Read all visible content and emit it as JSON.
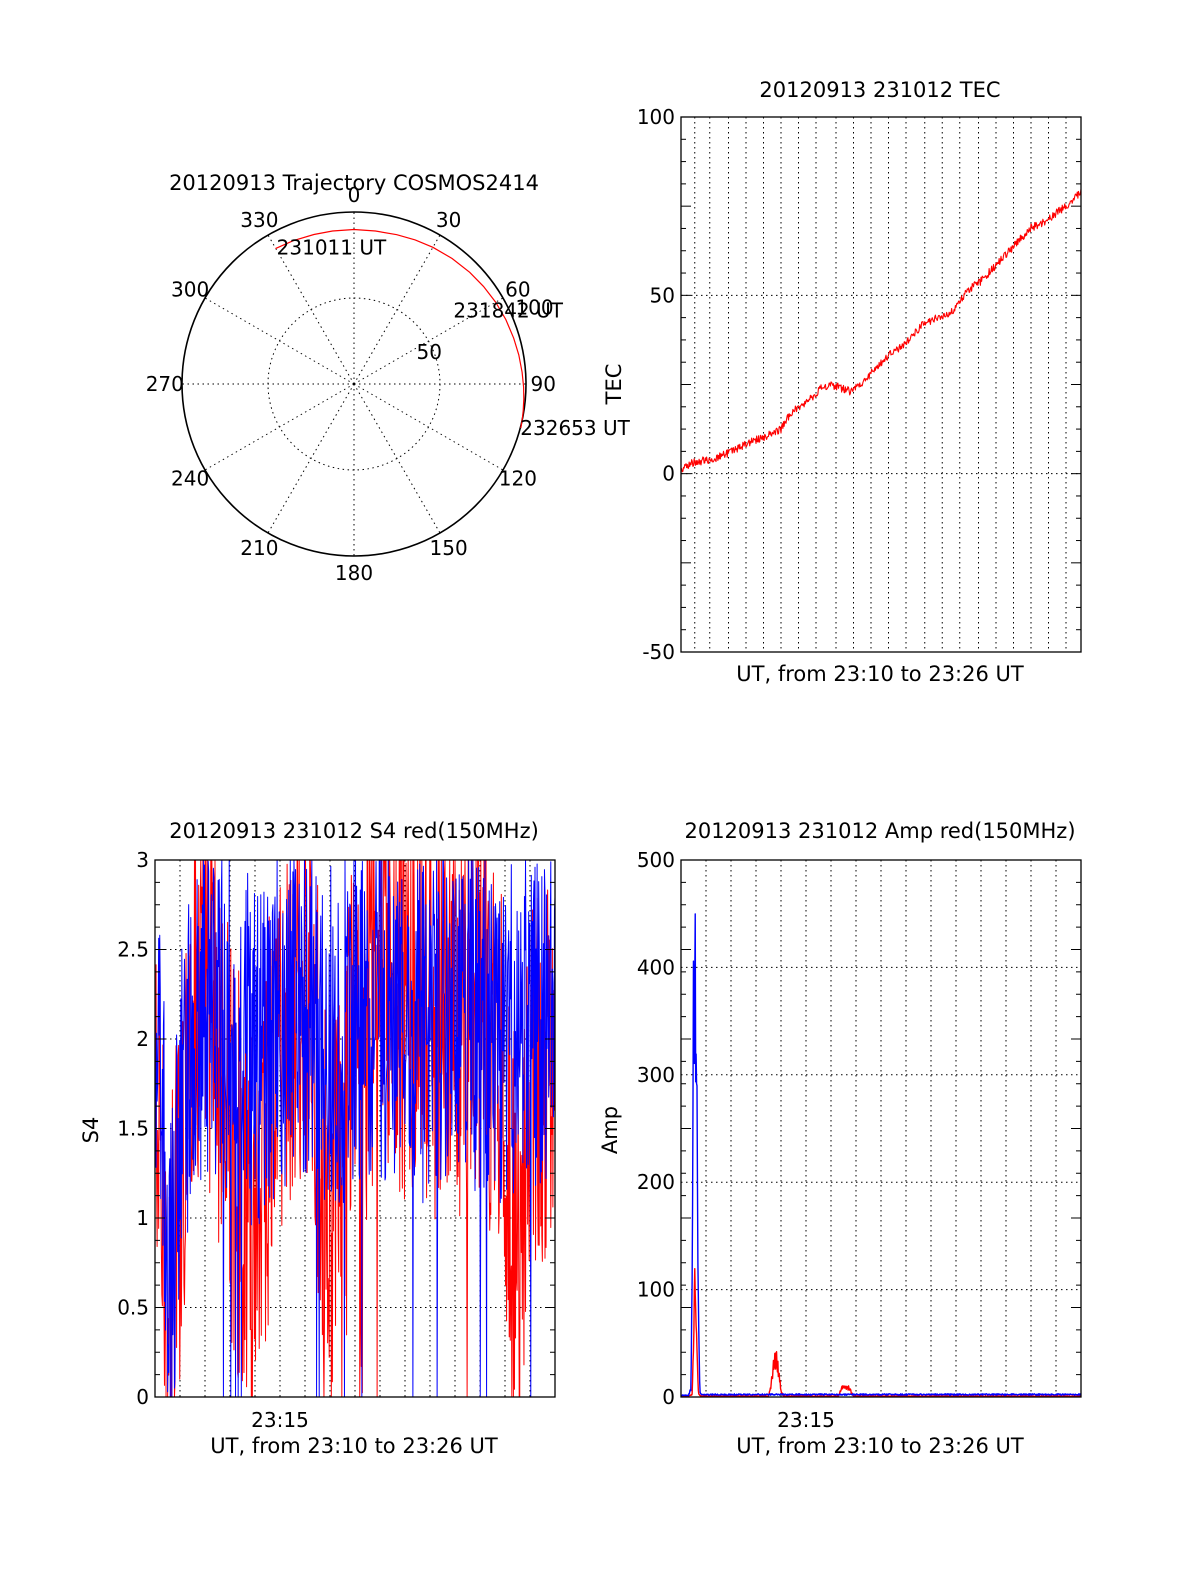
{
  "colors": {
    "red": "#ff0000",
    "blue": "#0000ff",
    "axis": "#000000"
  },
  "chart_data": [
    {
      "id": "trajectory",
      "type": "polar",
      "title": "20120913 Trajectory COSMOS2414",
      "azimuth_labels": [
        "0",
        "30",
        "60",
        "90",
        "120",
        "150",
        "180",
        "210",
        "240",
        "270",
        "300",
        "330"
      ],
      "azimuth_values": [
        0,
        30,
        60,
        90,
        120,
        150,
        180,
        210,
        240,
        270,
        300,
        330
      ],
      "radial_labels": [
        "50",
        "100"
      ],
      "radial_values": [
        50,
        100
      ],
      "radial_max": 100,
      "track_color": "#ff0000",
      "track": {
        "azimuth": [
          -30.1,
          -23,
          -15,
          -8,
          0,
          8,
          16,
          23,
          30,
          38,
          46,
          53,
          60,
          67,
          74,
          80,
          86,
          91,
          95,
          99,
          102,
          104.8
        ],
        "radius": [
          91,
          90.5,
          90,
          89.8,
          89.8,
          89.8,
          90.3,
          91,
          91.8,
          92.6,
          93.5,
          94.3,
          95.1,
          95.9,
          96.6,
          97.3,
          98,
          98.6,
          99.1,
          99.6,
          100,
          100.3
        ]
      },
      "annotations": [
        {
          "text": "231011 UT",
          "azimuth": -29.5,
          "radius": 91.3
        },
        {
          "text": "231842 UT",
          "azimuth": 53.6,
          "radius": 71.8
        },
        {
          "text": "232653 UT",
          "azimuth": 104.8,
          "radius": 100
        }
      ]
    },
    {
      "id": "tec",
      "type": "line",
      "title": "20120913 231012 TEC",
      "xlabel": "UT, from 23:10 to 23:26 UT",
      "ylabel": "TEC",
      "xlim": [
        0,
        16
      ],
      "ylim": [
        -50,
        100
      ],
      "y_ticks": [
        -50,
        0,
        50,
        100
      ],
      "x_ticks": [],
      "x_gridlines": [
        0.55,
        1.15,
        1.9,
        2.6,
        3.3,
        4,
        4.7,
        5.4,
        6.2,
        6.9,
        7.6,
        8.3,
        9,
        9.75,
        10.45,
        11.15,
        11.9,
        12.6,
        13.3,
        14,
        14.7,
        15.4
      ],
      "series": [
        {
          "color": "#ff0000",
          "x": [
            0,
            0.4,
            0.8,
            1.2,
            1.6,
            2,
            2.4,
            2.8,
            3.2,
            3.6,
            4,
            4.4,
            4.8,
            5.2,
            5.6,
            6,
            6.4,
            6.8,
            7.2,
            7.6,
            8,
            8.4,
            8.8,
            9.2,
            9.6,
            10,
            10.4,
            10.8,
            11.2,
            11.6,
            12,
            12.4,
            12.8,
            13.2,
            13.6,
            14,
            14.4,
            14.8,
            15.2,
            15.6,
            16
          ],
          "y": [
            1,
            3,
            3.5,
            4,
            5,
            6,
            7.5,
            9,
            10,
            11,
            12.5,
            17,
            19,
            21,
            24,
            25,
            24,
            23,
            25,
            28,
            31,
            34,
            35.5,
            38,
            41.5,
            43,
            44,
            45,
            49,
            52,
            54,
            57,
            60,
            63,
            66,
            69,
            70,
            72,
            74,
            76,
            79
          ]
        }
      ]
    },
    {
      "id": "s4",
      "type": "line",
      "title": "20120913 231012 S4 red(150MHz)",
      "xlabel": "UT, from 23:10 to 23:26 UT",
      "ylabel": "S4",
      "xlim": [
        0,
        16
      ],
      "ylim": [
        0,
        3
      ],
      "y_ticks": [
        0,
        0.5,
        1,
        1.5,
        2,
        2.5,
        3
      ],
      "y_tick_labels": [
        "0",
        "0.5",
        "1",
        "1.5",
        "2",
        "2.5",
        "3"
      ],
      "x_ticks": [
        5
      ],
      "x_tick_labels": [
        "23:15"
      ],
      "x_gridlines": [
        1,
        2,
        3,
        4,
        5,
        6,
        7,
        8,
        9,
        10,
        11,
        12,
        13,
        14,
        15
      ],
      "series": [
        {
          "color": "#ff0000",
          "noise_amplitude": 0.9,
          "x": [
            0,
            0.3,
            0.6,
            1,
            1.5,
            2,
            2.5,
            3,
            3.5,
            4,
            5,
            6,
            6.5,
            7,
            7.5,
            8,
            8.3,
            8.5,
            9,
            10,
            11,
            12,
            13,
            14,
            14.3,
            14.6,
            15,
            16
          ],
          "y": [
            1.7,
            0.95,
            0.4,
            1.2,
            2.2,
            2.5,
            1.9,
            1.5,
            1.1,
            1,
            2,
            2.3,
            1.7,
            1.1,
            1.1,
            2.2,
            1,
            2.3,
            2.4,
            2.2,
            2.1,
            2.1,
            2.2,
            1.6,
            1,
            0.8,
            1.7,
            2.1
          ]
        },
        {
          "color": "#0000ff",
          "noise_amplitude": 0.75,
          "x": [
            0,
            0.3,
            0.6,
            1,
            1.5,
            2,
            3,
            4,
            5,
            6,
            7,
            8,
            9,
            10,
            11,
            12,
            13,
            14,
            15,
            16
          ],
          "y": [
            2,
            1.5,
            0.5,
            1.6,
            2,
            2.2,
            2.1,
            1.9,
            2.1,
            2.2,
            2,
            2.1,
            2.2,
            2.1,
            2,
            2.2,
            2.1,
            2,
            2.2,
            2
          ]
        }
      ]
    },
    {
      "id": "amp",
      "type": "line",
      "title": "20120913 231012 Amp red(150MHz)",
      "xlabel": "UT, from 23:10 to 23:26 UT",
      "ylabel": "Amp",
      "xlim": [
        0,
        16
      ],
      "ylim": [
        0,
        500
      ],
      "y_ticks": [
        0,
        100,
        200,
        300,
        400,
        500
      ],
      "x_ticks": [
        5
      ],
      "x_tick_labels": [
        "23:15"
      ],
      "x_gridlines": [
        1,
        2,
        3,
        4,
        5,
        6,
        7,
        8,
        9,
        10,
        11,
        12,
        13,
        14,
        15
      ],
      "series": [
        {
          "color": "#ff0000",
          "x": [
            0,
            0.3,
            0.45,
            0.5,
            0.55,
            0.6,
            0.65,
            0.7,
            0.8,
            3.5,
            3.6,
            3.7,
            3.8,
            3.9,
            4,
            4.1,
            6.3,
            6.4,
            6.5,
            6.6,
            6.7,
            6.8,
            6.9,
            16
          ],
          "y": [
            1,
            1,
            3,
            60,
            150,
            110,
            40,
            3,
            1,
            1,
            12,
            40,
            46,
            30,
            8,
            1,
            1,
            9,
            12,
            10,
            11,
            7,
            1,
            1
          ]
        },
        {
          "color": "#0000ff",
          "x": [
            0,
            0.3,
            0.4,
            0.45,
            0.5,
            0.55,
            0.6,
            0.65,
            0.7,
            0.75,
            0.8,
            1,
            16
          ],
          "y": [
            2,
            2,
            10,
            150,
            430,
            482,
            460,
            300,
            100,
            10,
            3,
            3,
            3
          ]
        }
      ]
    }
  ]
}
